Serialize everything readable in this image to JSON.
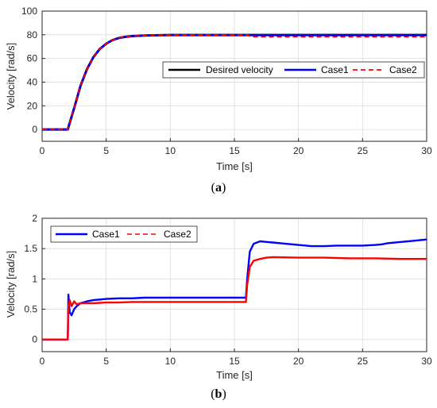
{
  "chart_data": [
    {
      "type": "line",
      "caption": "(a)",
      "caption_letter": "a",
      "xlabel": "Time [s]",
      "ylabel": "Velocity [rad/s]",
      "xlim": [
        0,
        30
      ],
      "ylim": [
        -10,
        100
      ],
      "xticks": [
        0,
        5,
        10,
        15,
        20,
        25,
        30
      ],
      "yticks": [
        0,
        20,
        40,
        60,
        80,
        100
      ],
      "grid": true,
      "legend_position": "center-right",
      "legend_layout": "horizontal",
      "series": [
        {
          "name": "Desired velocity",
          "color": "#000000",
          "style": "solid",
          "x": [
            0,
            2,
            2.5,
            3,
            3.5,
            4,
            4.5,
            5,
            5.5,
            6,
            6.5,
            7,
            8,
            9,
            10,
            12,
            15,
            16,
            20,
            25,
            30
          ],
          "y": [
            0,
            0,
            18,
            37,
            51,
            61,
            68,
            72.5,
            75.5,
            77.3,
            78.3,
            78.9,
            79.4,
            79.6,
            79.8,
            79.8,
            79.8,
            79.8,
            79.8,
            79.8,
            79.8
          ]
        },
        {
          "name": "Case1",
          "color": "#0000ff",
          "style": "solid",
          "x": [
            0,
            2,
            2.5,
            3,
            3.5,
            4,
            4.5,
            5,
            5.5,
            6,
            6.5,
            7,
            8,
            9,
            10,
            12,
            15,
            16,
            20,
            25,
            30
          ],
          "y": [
            0,
            0,
            18,
            37,
            51,
            61,
            68,
            72.5,
            75.5,
            77.3,
            78.3,
            78.9,
            79.4,
            79.6,
            79.8,
            79.8,
            79.8,
            79.8,
            79.8,
            79.8,
            79.8
          ]
        },
        {
          "name": "Case2",
          "color": "#ff0000",
          "style": "dashed",
          "x": [
            0,
            2,
            2.5,
            3,
            3.5,
            4,
            4.5,
            5,
            5.5,
            6,
            6.5,
            7,
            8,
            9,
            10,
            12,
            15,
            16,
            16.3,
            20,
            25,
            30
          ],
          "y": [
            0,
            0,
            18,
            37,
            51,
            61,
            68,
            72.5,
            75.5,
            77.3,
            78.3,
            78.9,
            79.4,
            79.6,
            79.8,
            79.8,
            79.8,
            79.8,
            78.3,
            78.3,
            78.3,
            78.3
          ]
        }
      ]
    },
    {
      "type": "line",
      "caption": "(b)",
      "caption_letter": "b",
      "xlabel": "Time [s]",
      "ylabel": "Velocity [rad/s]",
      "xlim": [
        0,
        30
      ],
      "ylim": [
        -0.2,
        2
      ],
      "xticks": [
        0,
        5,
        10,
        15,
        20,
        25,
        30
      ],
      "yticks": [
        0,
        0.5,
        1,
        1.5,
        2
      ],
      "grid": true,
      "legend_position": "top-left",
      "legend_layout": "horizontal",
      "series": [
        {
          "name": "Case1",
          "color": "#0000ff",
          "style": "solid",
          "x": [
            0,
            2,
            2.05,
            2.15,
            2.3,
            2.5,
            2.7,
            3,
            3.5,
            4,
            5,
            6,
            7,
            8,
            10,
            12,
            14,
            15.9,
            16,
            16.2,
            16.5,
            17,
            17.5,
            18,
            19,
            20,
            21,
            22,
            23,
            24,
            25,
            26,
            26.5,
            27,
            28,
            29,
            30
          ],
          "y": [
            0,
            0,
            0.74,
            0.45,
            0.4,
            0.5,
            0.55,
            0.6,
            0.63,
            0.65,
            0.67,
            0.68,
            0.68,
            0.69,
            0.69,
            0.69,
            0.69,
            0.69,
            1.0,
            1.45,
            1.58,
            1.62,
            1.61,
            1.6,
            1.58,
            1.56,
            1.54,
            1.54,
            1.55,
            1.55,
            1.55,
            1.56,
            1.57,
            1.59,
            1.61,
            1.63,
            1.65
          ]
        },
        {
          "name": "Case2",
          "color": "#ff0000",
          "style": "solid",
          "x": [
            0,
            2,
            2.05,
            2.15,
            2.3,
            2.5,
            2.7,
            3,
            3.5,
            4,
            5,
            6,
            7,
            8,
            10,
            12,
            14,
            15.9,
            16,
            16.2,
            16.5,
            17,
            17.5,
            18,
            20,
            22,
            24,
            26,
            28,
            30
          ],
          "y": [
            0,
            0,
            0.56,
            0.65,
            0.55,
            0.63,
            0.58,
            0.6,
            0.6,
            0.6,
            0.61,
            0.61,
            0.62,
            0.62,
            0.62,
            0.62,
            0.62,
            0.62,
            0.9,
            1.2,
            1.3,
            1.33,
            1.35,
            1.36,
            1.35,
            1.35,
            1.34,
            1.34,
            1.33,
            1.33
          ]
        }
      ]
    }
  ]
}
